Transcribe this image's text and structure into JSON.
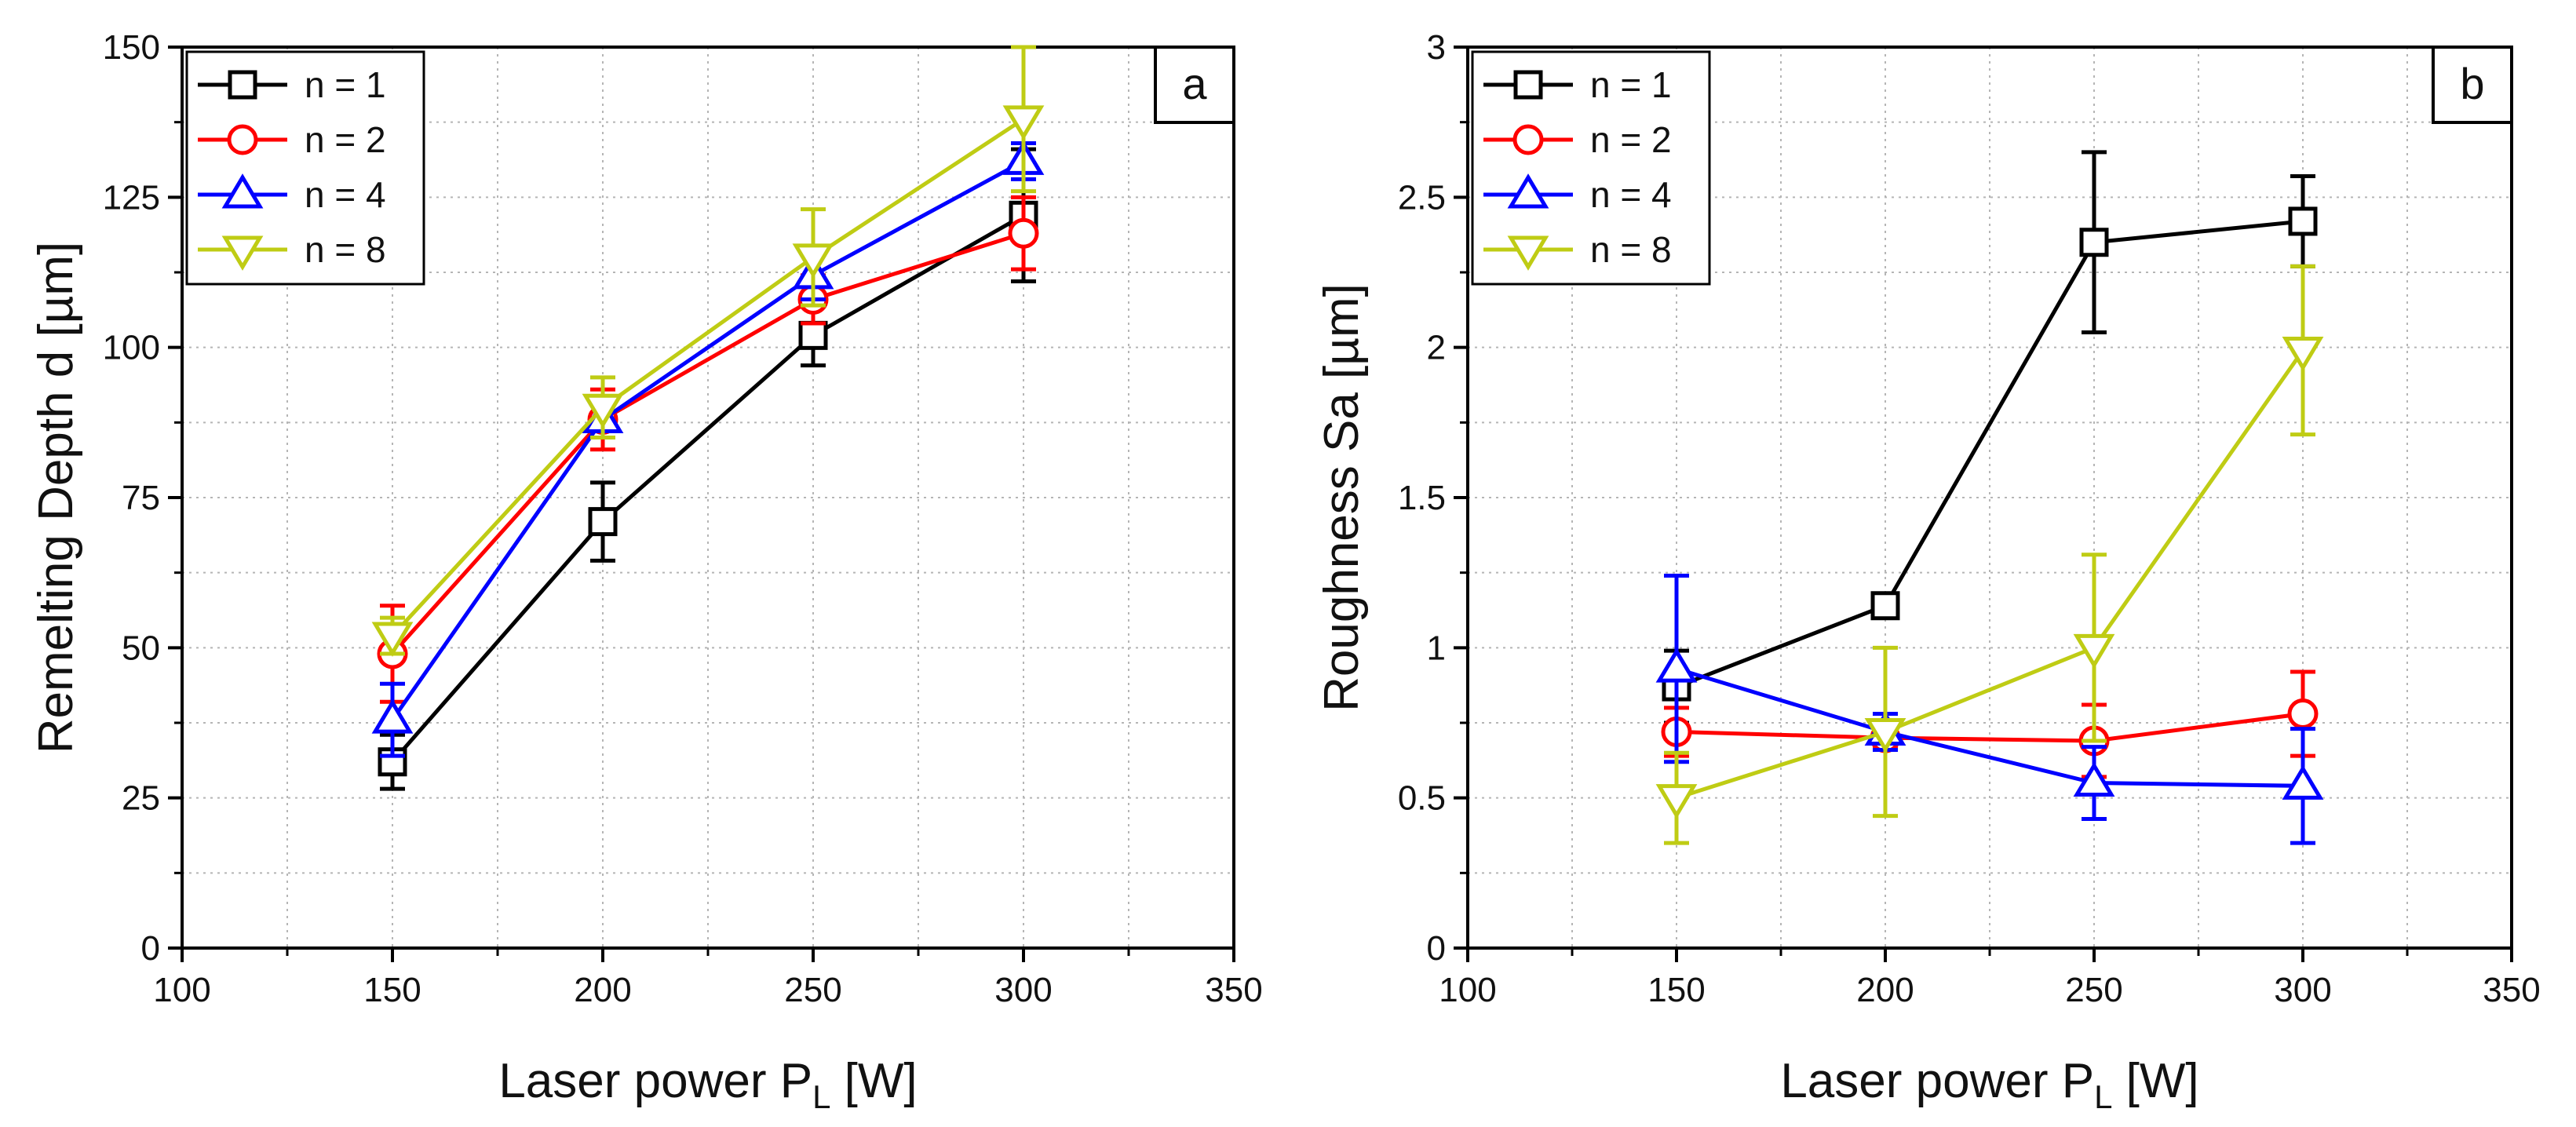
{
  "chart_data": [
    {
      "type": "line",
      "panel_label": "a",
      "x": [
        150,
        200,
        250,
        300
      ],
      "xlim": [
        100,
        350
      ],
      "xticks": [
        100,
        150,
        200,
        250,
        300,
        350
      ],
      "ylim": [
        0,
        150
      ],
      "yticks": [
        0,
        25,
        50,
        75,
        100,
        125,
        150
      ],
      "xlabel": {
        "main": "Laser power P",
        "sub": "L",
        "unit": " [W]"
      },
      "ylabel": "Remelting Depth d [µm]",
      "grid": true,
      "legend_position": "top-left",
      "series": [
        {
          "name": "n = 1",
          "color": "#000000",
          "marker": "square",
          "values": [
            31,
            71,
            102,
            122
          ],
          "errors": [
            4.5,
            6.5,
            5,
            11
          ]
        },
        {
          "name": "n = 2",
          "color": "#ff0000",
          "marker": "circle",
          "values": [
            49,
            88,
            108,
            119
          ],
          "errors": [
            8,
            5,
            4,
            6
          ]
        },
        {
          "name": "n = 4",
          "color": "#0000ff",
          "marker": "triangle-up",
          "values": [
            38,
            88,
            112,
            131
          ],
          "errors": [
            6,
            3,
            4,
            3
          ]
        },
        {
          "name": "n = 8",
          "color": "#bfcc14",
          "marker": "triangle-down",
          "values": [
            52,
            90,
            115,
            138
          ],
          "errors": [
            3,
            5,
            8,
            12
          ]
        }
      ]
    },
    {
      "type": "line",
      "panel_label": "b",
      "x": [
        150,
        200,
        250,
        300
      ],
      "xlim": [
        100,
        350
      ],
      "xticks": [
        100,
        150,
        200,
        250,
        300,
        350
      ],
      "ylim": [
        0,
        3
      ],
      "yticks": [
        0,
        0.5,
        1,
        1.5,
        2,
        2.5,
        3
      ],
      "ytick_labels": [
        "0",
        "0.5",
        "1",
        "1.5",
        "2",
        "2.5",
        "3"
      ],
      "xlabel": {
        "main": "Laser power P",
        "sub": "L",
        "unit": " [W]"
      },
      "ylabel": "Roughness Sa [µm]",
      "grid": true,
      "legend_position": "top-left",
      "series": [
        {
          "name": "n = 1",
          "color": "#000000",
          "marker": "square",
          "values": [
            0.87,
            1.14,
            2.35,
            2.42
          ],
          "errors": [
            0.12,
            0.03,
            0.3,
            0.15
          ]
        },
        {
          "name": "n = 2",
          "color": "#ff0000",
          "marker": "circle",
          "values": [
            0.72,
            0.7,
            0.69,
            0.78
          ],
          "errors": [
            0.08,
            0.03,
            0.12,
            0.14
          ]
        },
        {
          "name": "n = 4",
          "color": "#0000ff",
          "marker": "triangle-up",
          "values": [
            0.93,
            0.72,
            0.55,
            0.54
          ],
          "errors": [
            0.31,
            0.06,
            0.12,
            0.19
          ]
        },
        {
          "name": "n = 8",
          "color": "#bfcc14",
          "marker": "triangle-down",
          "values": [
            0.5,
            0.72,
            1.0,
            1.99
          ],
          "errors": [
            0.15,
            0.28,
            0.31,
            0.28
          ]
        }
      ]
    }
  ]
}
